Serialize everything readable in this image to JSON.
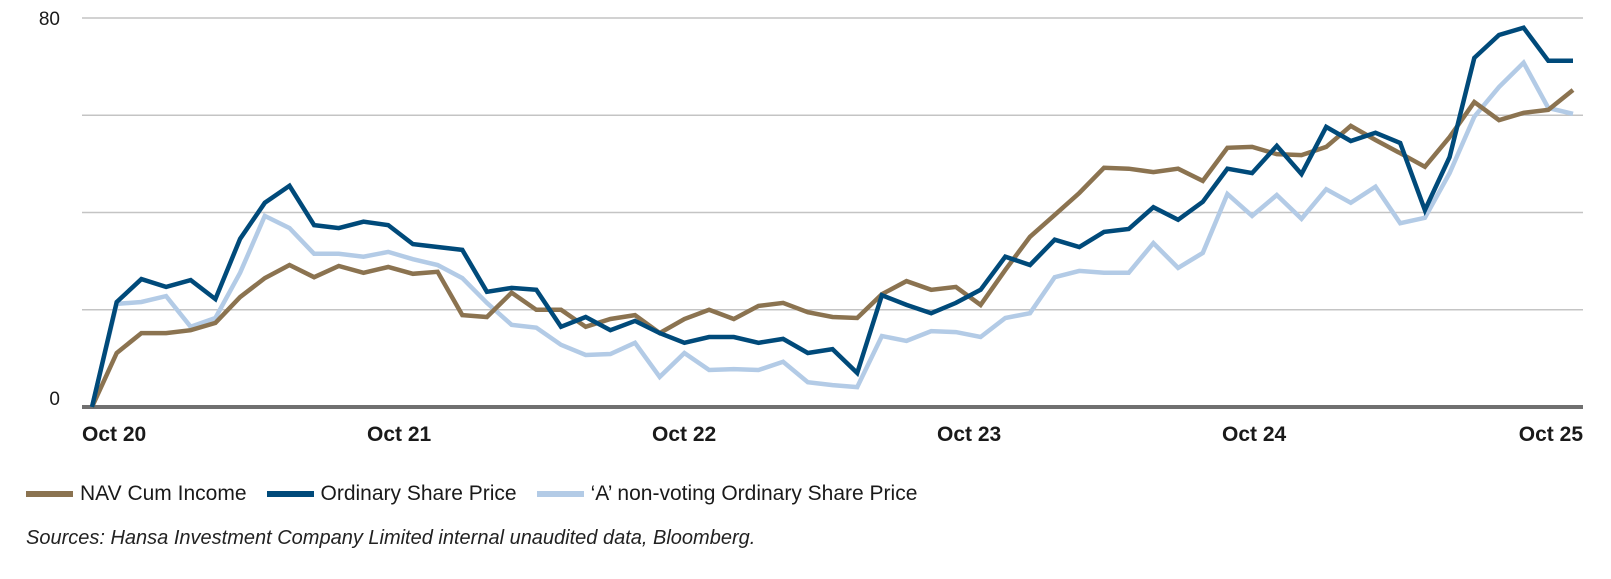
{
  "chart_data": {
    "type": "line",
    "title": "",
    "xlabel": "",
    "ylabel": "",
    "ylim": [
      0,
      80
    ],
    "y_tick_labels": [
      "80",
      "0"
    ],
    "y_gridlines": [
      0,
      20,
      40,
      60,
      80
    ],
    "grid": true,
    "x_tick_labels": [
      "Oct 20",
      "Oct 21",
      "Oct 22",
      "Oct 23",
      "Oct 24",
      "Oct 25"
    ],
    "x": [
      "2020-10",
      "2020-11",
      "2020-12",
      "2021-01",
      "2021-02",
      "2021-03",
      "2021-04",
      "2021-05",
      "2021-06",
      "2021-07",
      "2021-08",
      "2021-09",
      "2021-10",
      "2021-11",
      "2021-12",
      "2022-01",
      "2022-02",
      "2022-03",
      "2022-04",
      "2022-05",
      "2022-06",
      "2022-07",
      "2022-08",
      "2022-09",
      "2022-10",
      "2022-11",
      "2022-12",
      "2023-01",
      "2023-02",
      "2023-03",
      "2023-04",
      "2023-05",
      "2023-06",
      "2023-07",
      "2023-08",
      "2023-09",
      "2023-10",
      "2023-11",
      "2023-12",
      "2024-01",
      "2024-02",
      "2024-03",
      "2024-04",
      "2024-05",
      "2024-06",
      "2024-07",
      "2024-08",
      "2024-09",
      "2024-10",
      "2024-11",
      "2024-12",
      "2025-01",
      "2025-02",
      "2025-03",
      "2025-04",
      "2025-05",
      "2025-06",
      "2025-07",
      "2025-08",
      "2025-09",
      "2025-10"
    ],
    "series": [
      {
        "name": "NAV Cum Income",
        "color": "#8B7350",
        "values": [
          0,
          11.1,
          15.2,
          15.2,
          15.8,
          17.3,
          22.6,
          26.5,
          29.2,
          26.7,
          29.0,
          27.6,
          28.8,
          27.4,
          27.8,
          18.9,
          18.5,
          23.5,
          20.0,
          20.0,
          16.5,
          18.1,
          18.9,
          15.2,
          18.1,
          20.0,
          18.1,
          20.8,
          21.4,
          19.5,
          18.5,
          18.3,
          23.2,
          25.9,
          24.1,
          24.7,
          21.0,
          28.2,
          35.0,
          39.5,
          44.0,
          49.2,
          49.0,
          48.3,
          49.0,
          46.5,
          53.3,
          53.5,
          52.0,
          51.8,
          53.5,
          57.8,
          54.9,
          52.2,
          49.4,
          55.5,
          62.7,
          59.0,
          60.5,
          61.1,
          65.2
        ]
      },
      {
        "name": "Ordinary Share Price",
        "color": "#004A7A",
        "values": [
          0,
          21.6,
          26.3,
          24.7,
          26.1,
          22.2,
          34.6,
          42.0,
          45.5,
          37.4,
          36.8,
          38.1,
          37.4,
          33.5,
          32.9,
          32.3,
          23.7,
          24.5,
          24.1,
          16.5,
          18.5,
          15.8,
          17.7,
          15.2,
          13.2,
          14.4,
          14.4,
          13.2,
          14.0,
          11.1,
          11.9,
          7.0,
          23.0,
          21.0,
          19.3,
          21.4,
          24.1,
          30.9,
          29.2,
          34.4,
          32.9,
          36.0,
          36.6,
          41.1,
          38.5,
          42.2,
          49.0,
          48.1,
          53.7,
          47.9,
          57.6,
          54.7,
          56.4,
          54.3,
          40.5,
          51.4,
          71.8,
          76.5,
          78.0,
          71.2,
          71.2
        ]
      },
      {
        "name": "'A' non-voting Ordinary Share Price",
        "color": "#B3CBE6",
        "values": [
          0,
          21.2,
          21.6,
          22.8,
          16.5,
          18.3,
          27.6,
          39.3,
          36.8,
          31.5,
          31.5,
          30.9,
          31.9,
          30.4,
          29.2,
          26.5,
          21.4,
          16.9,
          16.3,
          12.8,
          10.7,
          10.9,
          13.2,
          6.2,
          11.1,
          7.6,
          7.8,
          7.6,
          9.3,
          5.1,
          4.5,
          4.1,
          14.6,
          13.6,
          15.6,
          15.4,
          14.4,
          18.3,
          19.3,
          26.7,
          28.0,
          27.6,
          27.6,
          33.7,
          28.6,
          31.7,
          43.8,
          39.3,
          43.6,
          38.7,
          44.8,
          42.0,
          45.3,
          37.8,
          38.9,
          48.1,
          59.7,
          65.8,
          70.8,
          61.5,
          60.3
        ]
      }
    ],
    "legend_position": "bottom-left"
  },
  "legend": [
    {
      "label": "NAV Cum Income",
      "color": "#8B7350"
    },
    {
      "label": "Ordinary Share Price",
      "color": "#004A7A"
    },
    {
      "label": "‘A’ non-voting Ordinary Share Price",
      "color": "#B3CBE6"
    }
  ],
  "sources": "Sources: Hansa Investment Company Limited internal unaudited data, Bloomberg."
}
